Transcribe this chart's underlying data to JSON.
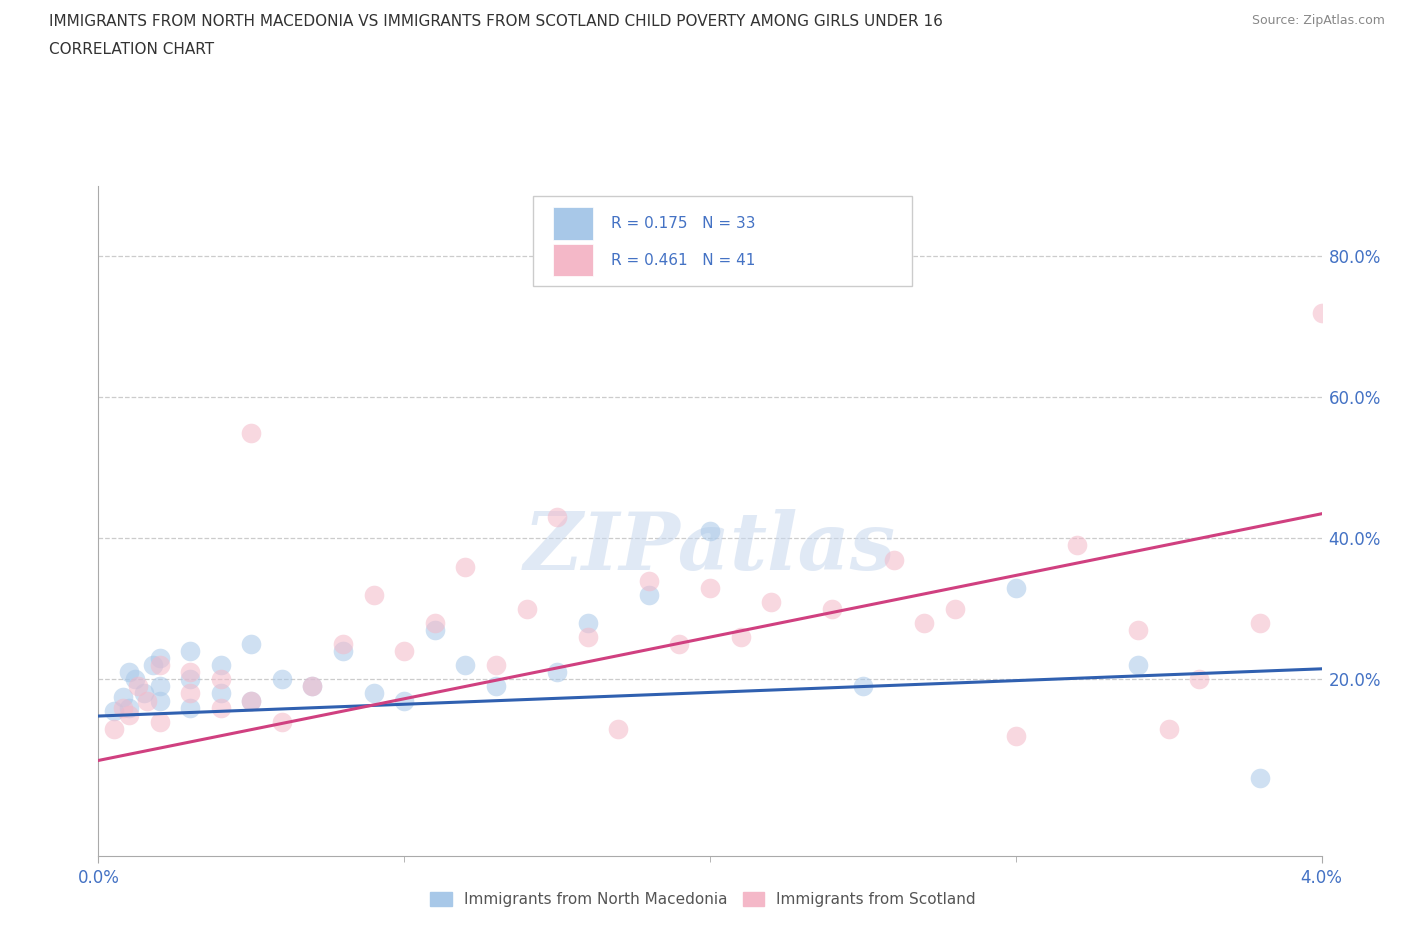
{
  "title": "IMMIGRANTS FROM NORTH MACEDONIA VS IMMIGRANTS FROM SCOTLAND CHILD POVERTY AMONG GIRLS UNDER 16",
  "subtitle": "CORRELATION CHART",
  "source": "Source: ZipAtlas.com",
  "ylabel": "Child Poverty Among Girls Under 16",
  "xlim": [
    0.0,
    0.04
  ],
  "ylim": [
    -0.05,
    0.9
  ],
  "watermark": "ZIPatlas",
  "legend_r1": "R = 0.175",
  "legend_n1": "N = 33",
  "legend_r2": "R = 0.461",
  "legend_n2": "N = 41",
  "blue_color": "#a8c8e8",
  "pink_color": "#f4b8c8",
  "blue_line_color": "#3060b0",
  "pink_line_color": "#d04080",
  "title_color": "#333333",
  "axis_label_color": "#4472c4",
  "grid_color": "#cccccc",
  "blue_scatter_x": [
    0.0005,
    0.0008,
    0.001,
    0.001,
    0.0012,
    0.0015,
    0.0018,
    0.002,
    0.002,
    0.002,
    0.003,
    0.003,
    0.003,
    0.004,
    0.004,
    0.005,
    0.005,
    0.006,
    0.007,
    0.008,
    0.009,
    0.01,
    0.011,
    0.012,
    0.013,
    0.015,
    0.016,
    0.018,
    0.02,
    0.025,
    0.03,
    0.034,
    0.038
  ],
  "blue_scatter_y": [
    0.155,
    0.175,
    0.16,
    0.21,
    0.2,
    0.18,
    0.22,
    0.17,
    0.19,
    0.23,
    0.16,
    0.2,
    0.24,
    0.18,
    0.22,
    0.17,
    0.25,
    0.2,
    0.19,
    0.24,
    0.18,
    0.17,
    0.27,
    0.22,
    0.19,
    0.21,
    0.28,
    0.32,
    0.41,
    0.19,
    0.33,
    0.22,
    0.06
  ],
  "pink_scatter_x": [
    0.0005,
    0.0008,
    0.001,
    0.0013,
    0.0016,
    0.002,
    0.002,
    0.003,
    0.003,
    0.004,
    0.004,
    0.005,
    0.005,
    0.006,
    0.007,
    0.008,
    0.009,
    0.01,
    0.011,
    0.012,
    0.013,
    0.014,
    0.015,
    0.016,
    0.017,
    0.018,
    0.019,
    0.02,
    0.021,
    0.022,
    0.024,
    0.026,
    0.027,
    0.028,
    0.03,
    0.032,
    0.034,
    0.035,
    0.036,
    0.038,
    0.04
  ],
  "pink_scatter_y": [
    0.13,
    0.16,
    0.15,
    0.19,
    0.17,
    0.14,
    0.22,
    0.18,
    0.21,
    0.16,
    0.2,
    0.17,
    0.55,
    0.14,
    0.19,
    0.25,
    0.32,
    0.24,
    0.28,
    0.36,
    0.22,
    0.3,
    0.43,
    0.26,
    0.13,
    0.34,
    0.25,
    0.33,
    0.26,
    0.31,
    0.3,
    0.37,
    0.28,
    0.3,
    0.12,
    0.39,
    0.27,
    0.13,
    0.2,
    0.28,
    0.72
  ],
  "blue_line_x": [
    0.0,
    0.04
  ],
  "blue_line_y": [
    0.148,
    0.215
  ],
  "pink_line_x": [
    0.0,
    0.04
  ],
  "pink_line_y": [
    0.085,
    0.435
  ],
  "scatter_size": 200,
  "scatter_alpha": 0.55,
  "legend_label1": "Immigrants from North Macedonia",
  "legend_label2": "Immigrants from Scotland"
}
